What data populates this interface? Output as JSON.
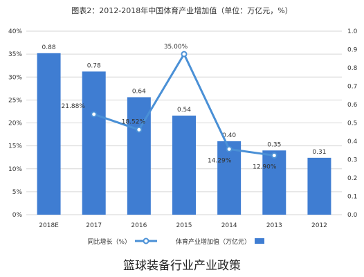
{
  "caption": "篮球装备行业产业政策",
  "chart_data": {
    "type": "bar",
    "title": "图表2：2012-2018年中国体育产业增加值（单位：万亿元，%）",
    "categories": [
      "2018E",
      "2017",
      "2016",
      "2015",
      "2014",
      "2013",
      "2012"
    ],
    "series": [
      {
        "name": "体育产业增加值（万亿元）",
        "type": "bar",
        "axis": "right",
        "values": [
          0.88,
          0.78,
          0.64,
          0.54,
          0.4,
          0.35,
          0.31
        ],
        "labels": [
          "0.88",
          "0.78",
          "0.64",
          "0.54",
          "0.40",
          "0.35",
          "0.31"
        ]
      },
      {
        "name": "同比增长（%）",
        "type": "line",
        "axis": "left",
        "values": [
          null,
          21.88,
          18.52,
          35.0,
          14.29,
          12.9,
          null
        ],
        "labels": [
          "",
          "21.88%",
          "18.52%",
          "35.00%",
          "14.29%",
          "12.90%",
          ""
        ]
      }
    ],
    "left_axis": {
      "ticks": [
        "0%",
        "5%",
        "10%",
        "15%",
        "20%",
        "25%",
        "30%",
        "35%",
        "40%"
      ],
      "ylim": [
        0,
        40
      ]
    },
    "right_axis": {
      "ticks": [
        "0.0",
        "0.1",
        "0.2",
        "0.3",
        "0.4",
        "0.5",
        "0.6",
        "0.7",
        "0.8",
        "0.9",
        "1.0"
      ],
      "ylim": [
        0,
        1.0
      ]
    },
    "grid": true,
    "legend_position": "bottom",
    "colors": {
      "bar": "#3f7dd2",
      "line": "#4a90d6",
      "marker_fill": "#ffffff",
      "grid": "#d6d6d6",
      "text": "#333333"
    }
  }
}
